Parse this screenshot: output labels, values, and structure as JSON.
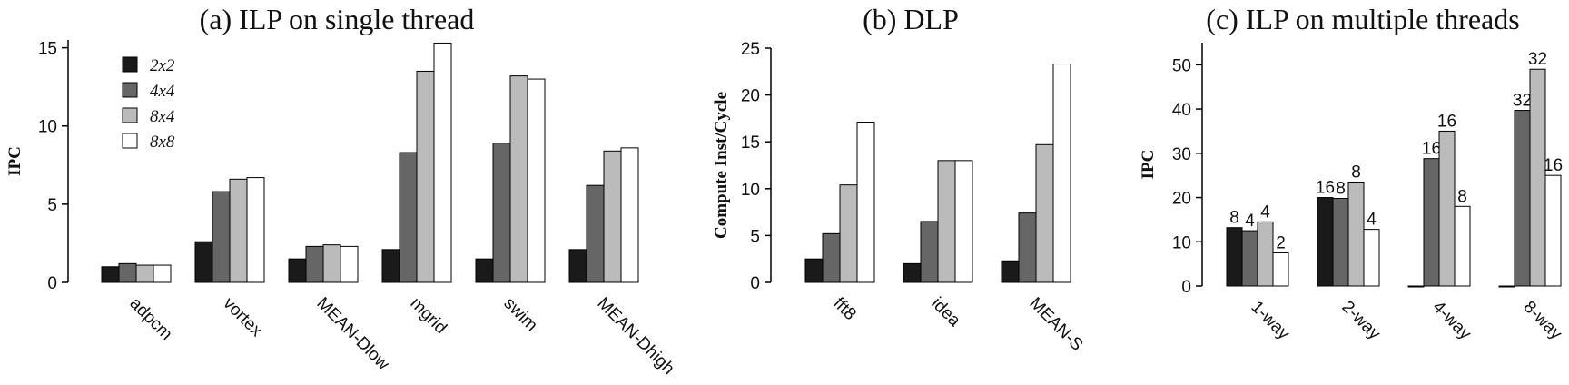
{
  "chart_data": [
    {
      "type": "bar",
      "title": "(a) ILP on single thread",
      "ylabel": "IPC",
      "categories": [
        "adpcm",
        "vortex",
        "MEAN-Dlow",
        "mgrid",
        "swim",
        "MEAN-Dhigh"
      ],
      "series": [
        {
          "name": "2x2",
          "color": "#1a1a1a",
          "values": [
            1.0,
            2.6,
            1.5,
            2.1,
            1.5,
            2.1
          ]
        },
        {
          "name": "4x4",
          "color": "#666666",
          "values": [
            1.2,
            5.8,
            2.3,
            8.3,
            8.9,
            6.2
          ]
        },
        {
          "name": "8x4",
          "color": "#bbbbbb",
          "values": [
            1.1,
            6.6,
            2.4,
            13.5,
            13.2,
            8.4
          ]
        },
        {
          "name": "8x8",
          "color": "#ffffff",
          "values": [
            1.1,
            6.7,
            2.3,
            15.3,
            13.0,
            8.6
          ]
        }
      ],
      "ylim": [
        0,
        15.5
      ],
      "yticks": [
        0,
        5,
        10,
        15
      ],
      "legend": "upper left"
    },
    {
      "type": "bar",
      "title": "(b) DLP",
      "ylabel": "Compute Inst/Cycle",
      "categories": [
        "fft8",
        "idea",
        "MEAN-S"
      ],
      "series": [
        {
          "name": "2x2",
          "color": "#1a1a1a",
          "values": [
            2.5,
            2.0,
            2.3
          ]
        },
        {
          "name": "4x4",
          "color": "#666666",
          "values": [
            5.2,
            6.5,
            7.4
          ]
        },
        {
          "name": "8x4",
          "color": "#bbbbbb",
          "values": [
            10.4,
            13.0,
            14.7
          ]
        },
        {
          "name": "8x8",
          "color": "#ffffff",
          "values": [
            17.1,
            13.0,
            23.3
          ]
        }
      ],
      "ylim": [
        0,
        25
      ],
      "yticks": [
        0,
        5,
        10,
        15,
        20,
        25
      ]
    },
    {
      "type": "bar",
      "title": "(c) ILP on multiple threads",
      "ylabel": "IPC",
      "categories": [
        "1-way",
        "2-way",
        "4-way",
        "8-way"
      ],
      "series": [
        {
          "name": "2x2",
          "color": "#1a1a1a",
          "values": [
            13.2,
            20,
            0,
            0
          ],
          "bar_labels": [
            "8",
            "16",
            null,
            null
          ]
        },
        {
          "name": "4x4",
          "color": "#666666",
          "values": [
            12.5,
            19.8,
            28.8,
            39.7
          ],
          "bar_labels": [
            "4",
            "8",
            "16",
            "32"
          ]
        },
        {
          "name": "8x4",
          "color": "#bbbbbb",
          "values": [
            14.5,
            23.5,
            35,
            49
          ],
          "bar_labels": [
            "4",
            "8",
            "16",
            "32"
          ]
        },
        {
          "name": "8x8",
          "color": "#ffffff",
          "values": [
            7.5,
            12.8,
            18,
            25
          ],
          "bar_labels": [
            "2",
            "4",
            "8",
            "16"
          ]
        }
      ],
      "ylim": [
        0,
        55
      ],
      "yticks": [
        0,
        10,
        20,
        30,
        40,
        50
      ]
    }
  ]
}
